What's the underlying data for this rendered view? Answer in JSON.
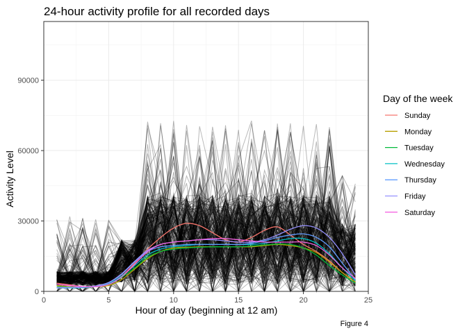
{
  "chart_data": {
    "type": "line",
    "title": "24-hour activity profile for all recorded days",
    "xlabel": "Hour of day (beginning at 12 am)",
    "ylabel": "Activity Level",
    "caption": "Figure 4",
    "xlim": [
      0,
      25
    ],
    "ylim": [
      0,
      115000
    ],
    "xticks": [
      0,
      5,
      10,
      15,
      20,
      25
    ],
    "yticks": [
      0,
      30000,
      60000,
      90000
    ],
    "grid": true,
    "legend": {
      "title": "Day of the week",
      "position": "right"
    },
    "background_lines": {
      "color": "#000000",
      "opacity": 0.28,
      "count": 260,
      "description_hidden": true
    },
    "x": [
      1,
      2,
      3,
      4,
      5,
      6,
      7,
      8,
      9,
      10,
      11,
      12,
      13,
      14,
      15,
      16,
      17,
      18,
      19,
      20,
      21,
      22,
      23,
      24
    ],
    "series": [
      {
        "name": "Sunday",
        "color": "#F8766D",
        "values": [
          3500,
          2800,
          2000,
          2000,
          3200,
          6500,
          12000,
          18000,
          23000,
          27000,
          29000,
          28000,
          25000,
          22000,
          21000,
          23000,
          26000,
          27500,
          24000,
          20000,
          17000,
          13000,
          8000,
          4000
        ]
      },
      {
        "name": "Monday",
        "color": "#B79F00",
        "values": [
          2500,
          2000,
          1800,
          2000,
          2500,
          5000,
          9500,
          14000,
          17000,
          18500,
          18800,
          19000,
          19000,
          19000,
          19000,
          19000,
          19500,
          20000,
          19500,
          18500,
          16500,
          12500,
          8000,
          4000
        ]
      },
      {
        "name": "Tuesday",
        "color": "#00BA38",
        "values": [
          2000,
          1800,
          1700,
          2000,
          3000,
          6000,
          10000,
          14500,
          17000,
          18000,
          18500,
          18800,
          19000,
          19000,
          19000,
          19300,
          19800,
          20200,
          20000,
          18500,
          15500,
          11000,
          7000,
          3500
        ]
      },
      {
        "name": "Wednesday",
        "color": "#00BFC4",
        "values": [
          1600,
          1500,
          1600,
          2100,
          3300,
          6500,
          11000,
          15500,
          18000,
          19000,
          19500,
          20000,
          20000,
          20000,
          20000,
          20000,
          20500,
          21500,
          22500,
          22500,
          20500,
          16000,
          10000,
          4500
        ]
      },
      {
        "name": "Thursday",
        "color": "#619CFF",
        "values": [
          1500,
          1600,
          1800,
          2300,
          3700,
          7300,
          12500,
          17000,
          19000,
          19500,
          20000,
          20000,
          20000,
          20000,
          20000,
          20500,
          21500,
          23000,
          24000,
          24500,
          23000,
          19000,
          12000,
          5000
        ]
      },
      {
        "name": "Friday",
        "color": "#9590FF",
        "values": [
          1700,
          1700,
          1800,
          2300,
          3800,
          7500,
          12800,
          17500,
          20000,
          21000,
          21500,
          22000,
          22000,
          21500,
          21000,
          21000,
          22000,
          24000,
          26500,
          28000,
          27000,
          23000,
          16000,
          7000
        ]
      },
      {
        "name": "Saturday",
        "color": "#F564E3",
        "values": [
          3000,
          2500,
          2000,
          2000,
          3000,
          6200,
          11500,
          17000,
          20000,
          21000,
          21500,
          22000,
          22500,
          22500,
          22000,
          21500,
          21000,
          21000,
          21000,
          21000,
          19500,
          15500,
          10000,
          5500
        ]
      }
    ]
  }
}
